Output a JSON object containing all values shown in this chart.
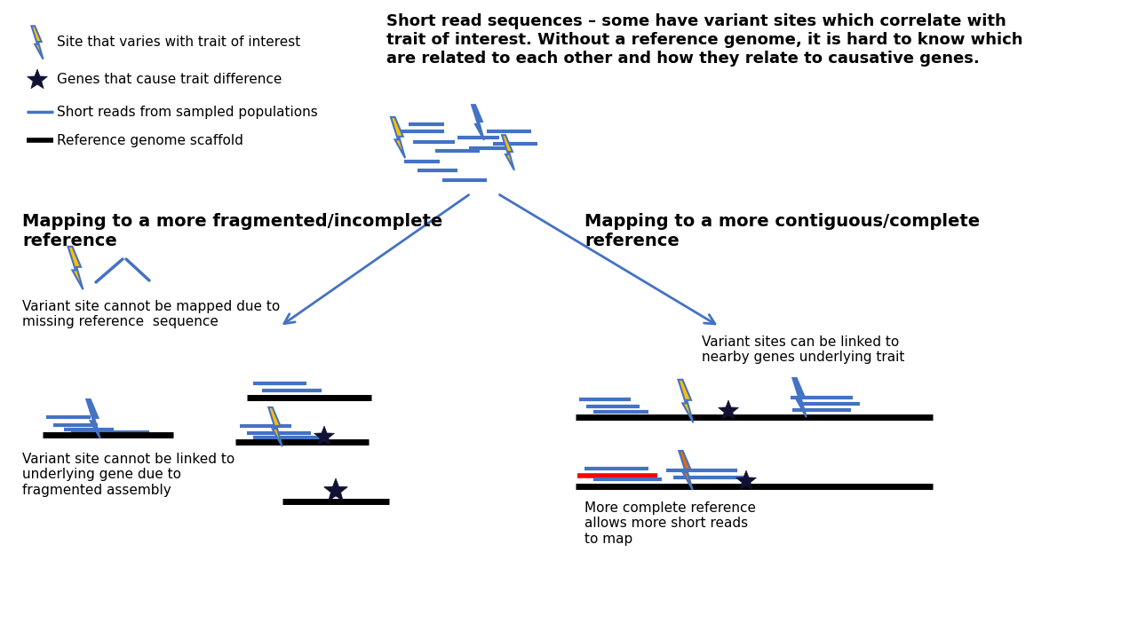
{
  "title_top": "Short read sequences – some have variant sites which correlate with\ntrait of interest. Without a reference genome, it is hard to know which\nare related to each other and how they relate to causative genes.",
  "title_left": "Mapping to a more fragmented/incomplete\nreference",
  "title_right": "Mapping to a more contiguous/complete\nreference",
  "legend": [
    {
      "label": "Site that varies with trait of interest",
      "type": "lightning"
    },
    {
      "label": "Genes that cause trait difference",
      "type": "star"
    },
    {
      "label": "Short reads from sampled populations",
      "type": "blue_line"
    },
    {
      "label": "Reference genome scaffold",
      "type": "black_line"
    }
  ],
  "text_left_top": "Variant site cannot be mapped due to\nmissing reference  sequence",
  "text_left_bottom": "Variant site cannot be linked to\nunderlying gene due to\nfragmented assembly",
  "text_right_top": "Variant sites can be linked to\nnearby genes underlying trait",
  "text_right_bottom": "More complete reference\nallows more short reads\nto map",
  "bg_color": "#ffffff",
  "blue_color": "#4472C4",
  "yellow_color": "#FFC000",
  "orange_color": "#E36C09",
  "black_color": "#000000",
  "red_color": "#FF0000"
}
